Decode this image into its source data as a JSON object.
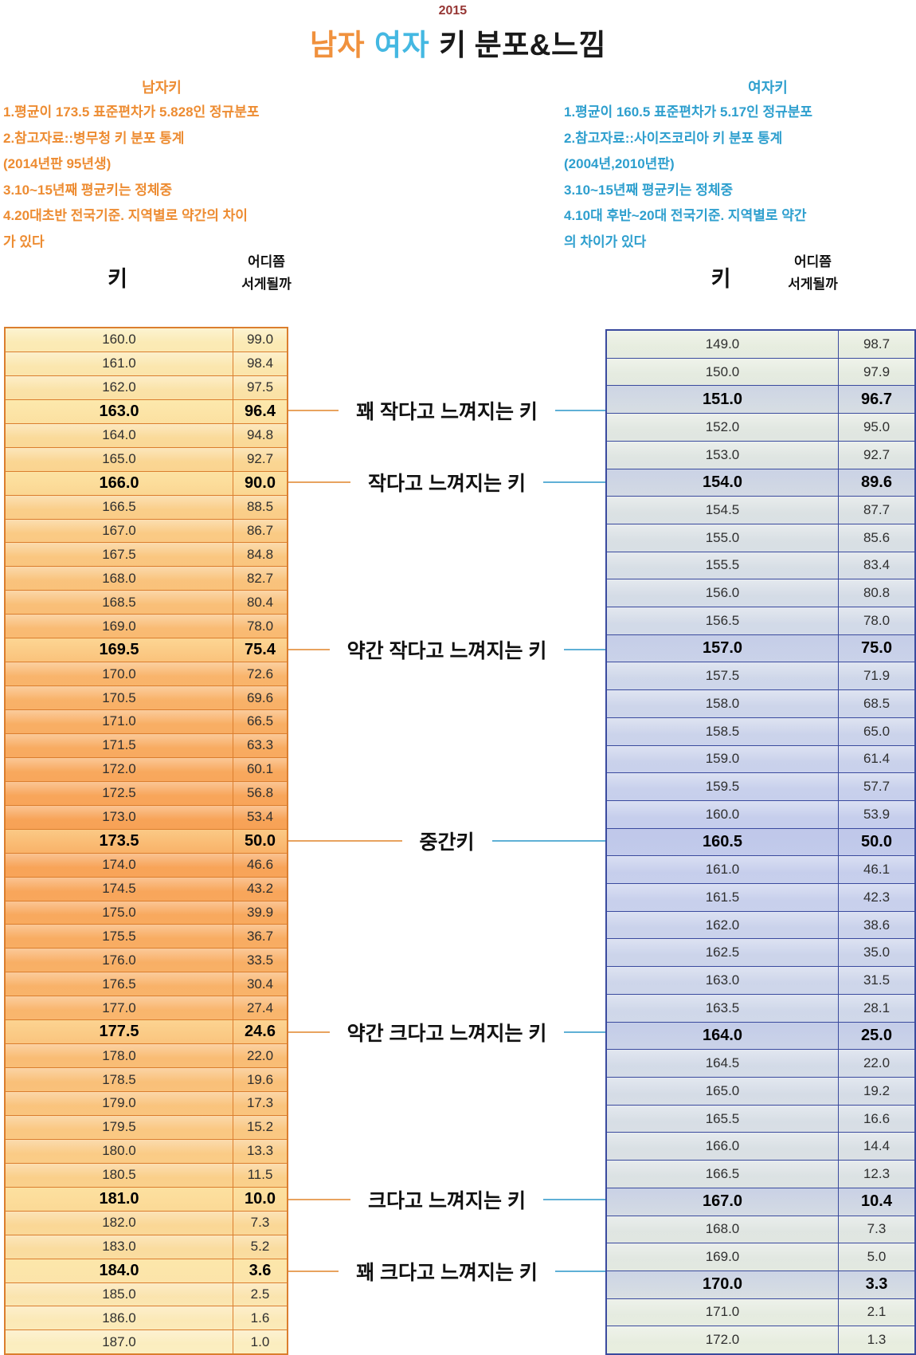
{
  "title": {
    "year": "2015",
    "male_word": "남자",
    "female_word": "여자",
    "height_word": "키",
    "rest": "분포&느낌",
    "male_color": "#F0913D",
    "female_color": "#44B8E2",
    "year_color": "#963634"
  },
  "male_panel": {
    "heading": "남자키",
    "accent_color": "#ED8C32",
    "notes": [
      "1.평균이 173.5 표준편차가 5.828인 정규분포",
      "2.참고자료::병무청 키 분포 통계",
      "(2014년판 95년생)",
      "3.10~15년째 평균키는 정체중",
      "4.20대초반 전국기준. 지역별로 약간의 차이",
      "가 있다"
    ]
  },
  "female_panel": {
    "heading": "여자키",
    "accent_color": "#2E9FCE",
    "notes": [
      "1.평균이 160.5 표준편차가 5.17인 정규분포",
      "2.참고자료::사이즈코리아 키 분포 통계",
      "(2004년,2010년판)",
      "3.10~15년째 평균키는 정체중",
      "4.10대 후반~20대 전국기준. 지역별로 약간",
      "의 차이가 있다"
    ]
  },
  "male_table": {
    "header_height": "키",
    "header_percentile_line1": "어디쯤",
    "header_percentile_line2": "서게될까",
    "border_color": "#DB7E2E",
    "bold_heights": [
      163,
      166,
      169.5,
      173.5,
      177.5,
      181,
      184
    ]
  },
  "female_table": {
    "header_height": "키",
    "header_percentile_line1": "어디쯤",
    "header_percentile_line2": "서게될까",
    "border_color": "#3A4A9E",
    "bold_heights": [
      151,
      154,
      157,
      160.5,
      164,
      167,
      170
    ]
  },
  "feel_labels": [
    {
      "text": "꽤 작다고 느껴지는 키",
      "male_height": 163,
      "female_height": 151
    },
    {
      "text": "작다고 느껴지는 키",
      "male_height": 166,
      "female_height": 154
    },
    {
      "text": "약간 작다고 느껴지는 키",
      "male_height": 169.5,
      "female_height": 157
    },
    {
      "text": "중간키",
      "male_height": 173.5,
      "female_height": 160.5
    },
    {
      "text": "약간 크다고 느껴지는 키",
      "male_height": 177.5,
      "female_height": 164
    },
    {
      "text": "크다고 느껴지는 키",
      "male_height": 181,
      "female_height": 167
    },
    {
      "text": "꽤 크다고 느껴지는 키",
      "male_height": 184,
      "female_height": 170
    }
  ],
  "chart_data": [
    {
      "type": "table",
      "title": "남자키 분포 (평균 173.5, 표준편차 5.828 정규분포)",
      "columns": [
        "키",
        "어디쯤 서게될까"
      ],
      "rows": [
        [
          160.0,
          99.0
        ],
        [
          161.0,
          98.4
        ],
        [
          162.0,
          97.5
        ],
        [
          163.0,
          96.4
        ],
        [
          164.0,
          94.8
        ],
        [
          165.0,
          92.7
        ],
        [
          166.0,
          90.0
        ],
        [
          166.5,
          88.5
        ],
        [
          167.0,
          86.7
        ],
        [
          167.5,
          84.8
        ],
        [
          168.0,
          82.7
        ],
        [
          168.5,
          80.4
        ],
        [
          169.0,
          78.0
        ],
        [
          169.5,
          75.4
        ],
        [
          170.0,
          72.6
        ],
        [
          170.5,
          69.6
        ],
        [
          171.0,
          66.5
        ],
        [
          171.5,
          63.3
        ],
        [
          172.0,
          60.1
        ],
        [
          172.5,
          56.8
        ],
        [
          173.0,
          53.4
        ],
        [
          173.5,
          50.0
        ],
        [
          174.0,
          46.6
        ],
        [
          174.5,
          43.2
        ],
        [
          175.0,
          39.9
        ],
        [
          175.5,
          36.7
        ],
        [
          176.0,
          33.5
        ],
        [
          176.5,
          30.4
        ],
        [
          177.0,
          27.4
        ],
        [
          177.5,
          24.6
        ],
        [
          178.0,
          22.0
        ],
        [
          178.5,
          19.6
        ],
        [
          179.0,
          17.3
        ],
        [
          179.5,
          15.2
        ],
        [
          180.0,
          13.3
        ],
        [
          180.5,
          11.5
        ],
        [
          181.0,
          10.0
        ],
        [
          182.0,
          7.3
        ],
        [
          183.0,
          5.2
        ],
        [
          184.0,
          3.6
        ],
        [
          185.0,
          2.5
        ],
        [
          186.0,
          1.6
        ],
        [
          187.0,
          1.0
        ]
      ]
    },
    {
      "type": "table",
      "title": "여자키 분포 (평균 160.5, 표준편차 5.17 정규분포)",
      "columns": [
        "키",
        "어디쯤 서게될까"
      ],
      "rows": [
        [
          149.0,
          98.7
        ],
        [
          150.0,
          97.9
        ],
        [
          151.0,
          96.7
        ],
        [
          152.0,
          95.0
        ],
        [
          153.0,
          92.7
        ],
        [
          154.0,
          89.6
        ],
        [
          154.5,
          87.7
        ],
        [
          155.0,
          85.6
        ],
        [
          155.5,
          83.4
        ],
        [
          156.0,
          80.8
        ],
        [
          156.5,
          78.0
        ],
        [
          157.0,
          75.0
        ],
        [
          157.5,
          71.9
        ],
        [
          158.0,
          68.5
        ],
        [
          158.5,
          65.0
        ],
        [
          159.0,
          61.4
        ],
        [
          159.5,
          57.7
        ],
        [
          160.0,
          53.9
        ],
        [
          160.5,
          50.0
        ],
        [
          161.0,
          46.1
        ],
        [
          161.5,
          42.3
        ],
        [
          162.0,
          38.6
        ],
        [
          162.5,
          35.0
        ],
        [
          163.0,
          31.5
        ],
        [
          163.5,
          28.1
        ],
        [
          164.0,
          25.0
        ],
        [
          164.5,
          22.0
        ],
        [
          165.0,
          19.2
        ],
        [
          165.5,
          16.6
        ],
        [
          166.0,
          14.4
        ],
        [
          166.5,
          12.3
        ],
        [
          167.0,
          10.4
        ],
        [
          168.0,
          7.3
        ],
        [
          169.0,
          5.0
        ],
        [
          170.0,
          3.3
        ],
        [
          171.0,
          2.1
        ],
        [
          172.0,
          1.3
        ]
      ]
    }
  ]
}
